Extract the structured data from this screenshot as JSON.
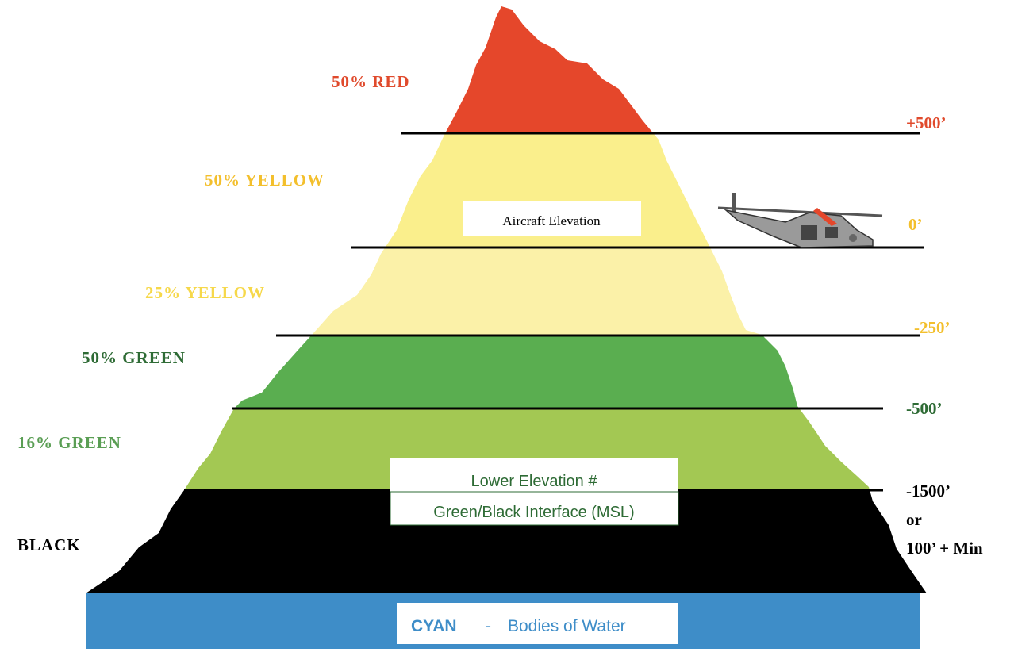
{
  "bands": [
    {
      "label": "50% RED"
    },
    {
      "label": "50% YELLOW"
    },
    {
      "label": "25% YELLOW"
    },
    {
      "label": "50% GREEN"
    },
    {
      "label": "16% GREEN"
    },
    {
      "label": "BLACK"
    }
  ],
  "elevations": [
    "+500’",
    "0’",
    "-250’",
    "-500’",
    "-1500’",
    "or",
    "100’ + Min"
  ],
  "boxes": {
    "aircraft": "Aircraft Elevation",
    "lower_1": "Lower Elevation #",
    "lower_2": "Green/Black Interface (MSL)"
  },
  "water": {
    "cyan": "CYAN",
    "dash": "-",
    "text": "Bodies of Water"
  }
}
